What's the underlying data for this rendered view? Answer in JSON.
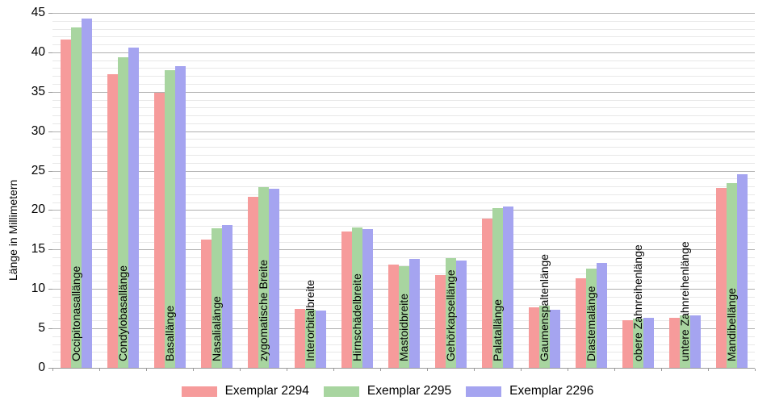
{
  "chart_data": {
    "type": "bar",
    "title": "",
    "ylabel": "Länge in Millimetern",
    "xlabel": "",
    "ylim": [
      0,
      45
    ],
    "ytick_step": 5,
    "minor_gridline_step": 1,
    "grid": true,
    "legend_position": "bottom",
    "categories": [
      "Occipitonasallänge",
      "Condylobasallänge",
      "Basallänge",
      "Nasalialänge",
      "zygomatische Breite",
      "Interorbitalbreite",
      "Hirnschädelbreite",
      "Mastoidbreite",
      "Gehörkapsellänge",
      "Palatallänge",
      "Gaumenspaltenlänge",
      "Diastemalänge",
      "obere Zahnreihenlänge",
      "untere Zahnreihenlänge",
      "Mandibellänge"
    ],
    "series": [
      {
        "name": "Exemplar 2294",
        "color": "#F69B9B",
        "values": [
          41.6,
          37.2,
          34.9,
          16.3,
          21.7,
          7.5,
          17.3,
          13.1,
          11.8,
          18.9,
          7.7,
          11.4,
          6.0,
          6.3,
          22.8
        ]
      },
      {
        "name": "Exemplar 2295",
        "color": "#A8D5A0",
        "values": [
          43.2,
          39.4,
          37.7,
          17.7,
          22.9,
          7.4,
          17.8,
          12.9,
          13.9,
          20.3,
          7.9,
          12.6,
          6.2,
          6.6,
          23.4
        ]
      },
      {
        "name": "Exemplar 2296",
        "color": "#A5A4F0",
        "values": [
          44.3,
          40.6,
          38.3,
          18.1,
          22.7,
          7.3,
          17.6,
          13.8,
          13.6,
          20.5,
          7.4,
          13.3,
          6.3,
          6.6,
          24.5
        ]
      }
    ]
  },
  "colors": {
    "background": "#ffffff",
    "grid_major": "#b0b0b0",
    "grid_minor": "#e8e8e8",
    "axis": "#9a9a9a",
    "text": "#000000"
  }
}
